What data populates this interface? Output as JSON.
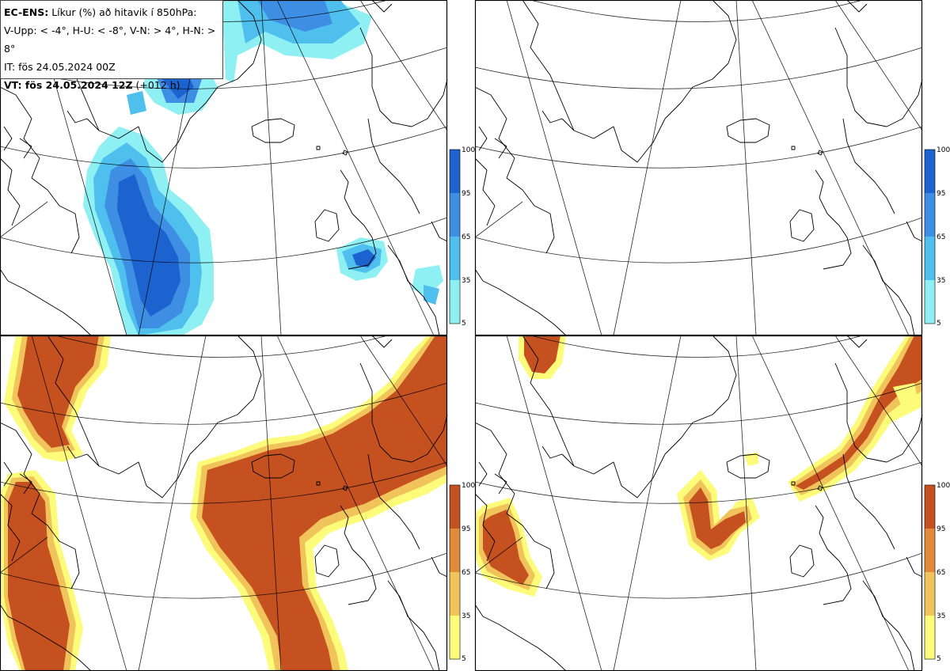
{
  "header": {
    "model": "EC-ENS:",
    "title": "Líkur (%) að hitavik í 850hPa:",
    "thresholds": "V-Upp: < -4°, H-U: < -8°, V-N: > 4°, H-N: > 8°",
    "it": "IT: fös 24.05.2024 00Z",
    "vt_bold": "VT: fös 24.05.2024 12Z",
    "vt_rest": " (+012 h)"
  },
  "colorbars": {
    "cold": {
      "ticks": [
        "100",
        "95",
        "65",
        "35",
        "5"
      ],
      "colors": [
        "#1d63cf",
        "#3e8fe3",
        "#4fbfee",
        "#8ff0f3"
      ]
    },
    "warm": {
      "ticks": [
        "100",
        "95",
        "65",
        "35",
        "5"
      ],
      "colors": [
        "#c55020",
        "#e08a3a",
        "#f0c45a",
        "#fdfb7a"
      ]
    }
  },
  "panels": [
    {
      "id": "V-Upp",
      "scheme": "cold"
    },
    {
      "id": "H-U",
      "scheme": "cold"
    },
    {
      "id": "V-N",
      "scheme": "warm"
    },
    {
      "id": "H-N",
      "scheme": "warm"
    }
  ]
}
